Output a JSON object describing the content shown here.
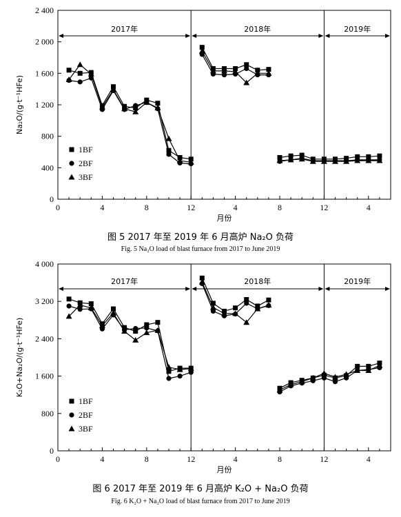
{
  "chart_data": [
    {
      "type": "line",
      "ylabel": "Na₂O/(g·t⁻¹HFe)",
      "xlabel": "月份",
      "ylim": [
        0,
        2400
      ],
      "yticks": [
        "0",
        "400",
        "800",
        "1 200",
        "1 600",
        "2 000",
        "2 400"
      ],
      "xticks": [
        "0",
        "4",
        "8",
        "12",
        "4",
        "8",
        "12",
        "4"
      ],
      "periods": [
        "2017年",
        "2018年",
        "2019年"
      ],
      "legend_position": "bottom-left",
      "x": [
        1,
        2,
        3,
        4,
        5,
        6,
        7,
        8,
        9,
        10,
        11,
        12,
        13,
        14,
        15,
        16,
        17,
        18,
        19,
        20,
        21,
        22,
        23,
        24,
        25,
        26,
        27,
        28,
        29
      ],
      "series": [
        {
          "name": "1BF",
          "marker": "square",
          "values": [
            1640,
            1600,
            1610,
            1190,
            1430,
            1180,
            1160,
            1260,
            1220,
            620,
            530,
            510,
            1930,
            1660,
            1660,
            1660,
            1710,
            1640,
            1650,
            530,
            550,
            560,
            510,
            510,
            510,
            520,
            540,
            540,
            550
          ]
        },
        {
          "name": "2BF",
          "marker": "circle",
          "values": [
            1510,
            1490,
            1540,
            1140,
            1380,
            1140,
            1190,
            1230,
            1150,
            570,
            460,
            450,
            1840,
            1590,
            1580,
            1590,
            1660,
            1580,
            1580,
            480,
            500,
            520,
            490,
            490,
            490,
            490,
            500,
            500,
            500
          ]
        },
        {
          "name": "3BF",
          "marker": "triangle",
          "values": [
            1520,
            1710,
            1590,
            1170,
            1390,
            1150,
            1110,
            1230,
            1160,
            770,
            490,
            470,
            1880,
            1630,
            1630,
            1620,
            1480,
            1600,
            1600,
            490,
            500,
            510,
            480,
            480,
            480,
            480,
            490,
            490,
            490
          ]
        }
      ],
      "caption_cn": "图 5   2017 年至 2019 年 6 月高炉 Na₂O 负荷",
      "caption_en": "Fig. 5    Na₂O load of blast furnace from 2017 to June 2019"
    },
    {
      "type": "line",
      "ylabel": "K₂O+Na₂O/(g·t⁻¹HFe)",
      "xlabel": "月份",
      "ylim": [
        0,
        4000
      ],
      "yticks": [
        "0",
        "800",
        "1 600",
        "2 400",
        "3 200",
        "4 000"
      ],
      "xticks": [
        "0",
        "4",
        "8",
        "12",
        "4",
        "8",
        "12",
        "4"
      ],
      "periods": [
        "2017年",
        "2018年",
        "2019年"
      ],
      "legend_position": "bottom-left",
      "x": [
        1,
        2,
        3,
        4,
        5,
        6,
        7,
        8,
        9,
        10,
        11,
        12,
        13,
        14,
        15,
        16,
        17,
        18,
        19,
        20,
        21,
        22,
        23,
        24,
        25,
        26,
        27,
        28,
        29
      ],
      "series": [
        {
          "name": "1BF",
          "marker": "square",
          "values": [
            3250,
            3170,
            3150,
            2720,
            3040,
            2640,
            2560,
            2700,
            2750,
            1700,
            1770,
            1770,
            3700,
            3160,
            2990,
            3060,
            3240,
            3100,
            3230,
            1340,
            1460,
            1510,
            1560,
            1620,
            1560,
            1610,
            1810,
            1810,
            1880
          ]
        },
        {
          "name": "2BF",
          "marker": "circle",
          "values": [
            3100,
            3030,
            3040,
            2610,
            2910,
            2590,
            2620,
            2630,
            2570,
            1550,
            1600,
            1680,
            3580,
            2990,
            2890,
            2930,
            3160,
            3040,
            3110,
            1260,
            1390,
            1450,
            1500,
            1560,
            1480,
            1560,
            1720,
            1740,
            1780
          ]
        },
        {
          "name": "3BF",
          "marker": "triangle",
          "values": [
            2880,
            3120,
            3060,
            2680,
            2950,
            2560,
            2370,
            2530,
            2580,
            1790,
            1740,
            1760,
            3610,
            3070,
            2940,
            2940,
            2750,
            3040,
            3120,
            1300,
            1420,
            1480,
            1560,
            1660,
            1580,
            1640,
            1720,
            1720,
            1830
          ]
        }
      ],
      "caption_cn": "图 6   2017 年至 2019 年 6 月高炉 K₂O + Na₂O 负荷",
      "caption_en": "Fig. 6    K₂O  +  Na₂O load of blast furnace from 2017 to June 2019"
    }
  ]
}
